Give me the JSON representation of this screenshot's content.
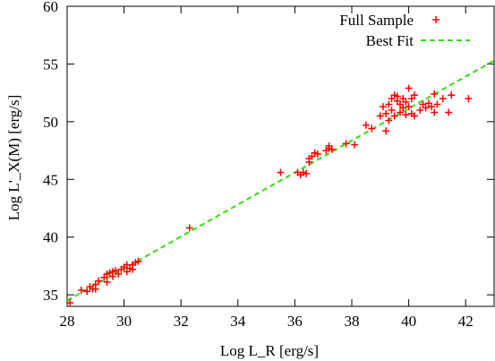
{
  "chart_data": {
    "type": "scatter",
    "title": "",
    "xlabel": "Log L_R [erg/s]",
    "ylabel": "Log L'_X(M) [erg/s]",
    "xlim": [
      28,
      43
    ],
    "ylim": [
      34,
      60
    ],
    "xticks": [
      28,
      30,
      32,
      34,
      36,
      38,
      40,
      42
    ],
    "yticks": [
      35,
      40,
      45,
      50,
      55,
      60
    ],
    "grid": false,
    "legend_position": "top-right",
    "colors": {
      "points": "#ff0000",
      "fit": "#33dd11"
    },
    "series": [
      {
        "name": "Full Sample",
        "kind": "points",
        "marker": "plus",
        "points": [
          [
            28.1,
            34.3
          ],
          [
            28.5,
            35.4
          ],
          [
            28.7,
            35.3
          ],
          [
            28.8,
            35.7
          ],
          [
            28.9,
            35.5
          ],
          [
            29.0,
            35.5
          ],
          [
            29.0,
            35.9
          ],
          [
            29.1,
            36.2
          ],
          [
            29.3,
            36.5
          ],
          [
            29.4,
            36.8
          ],
          [
            29.4,
            36.1
          ],
          [
            29.5,
            36.9
          ],
          [
            29.6,
            36.6
          ],
          [
            29.6,
            37.0
          ],
          [
            29.7,
            37.1
          ],
          [
            29.8,
            36.8
          ],
          [
            29.9,
            37.2
          ],
          [
            30.0,
            37.4
          ],
          [
            30.1,
            37.0
          ],
          [
            30.1,
            37.6
          ],
          [
            30.2,
            37.3
          ],
          [
            30.3,
            37.6
          ],
          [
            30.3,
            37.2
          ],
          [
            30.4,
            37.8
          ],
          [
            30.5,
            37.9
          ],
          [
            32.3,
            40.8
          ],
          [
            35.5,
            45.6
          ],
          [
            36.1,
            45.6
          ],
          [
            36.2,
            45.4
          ],
          [
            36.3,
            45.6
          ],
          [
            36.4,
            45.5
          ],
          [
            36.5,
            46.5
          ],
          [
            36.5,
            46.8
          ],
          [
            36.6,
            47.0
          ],
          [
            36.7,
            47.3
          ],
          [
            36.8,
            47.2
          ],
          [
            37.1,
            47.5
          ],
          [
            37.2,
            47.9
          ],
          [
            37.2,
            47.7
          ],
          [
            37.3,
            47.6
          ],
          [
            37.8,
            48.1
          ],
          [
            38.1,
            48.0
          ],
          [
            38.5,
            49.7
          ],
          [
            38.7,
            49.4
          ],
          [
            39.0,
            50.5
          ],
          [
            39.1,
            51.3
          ],
          [
            39.2,
            49.2
          ],
          [
            39.2,
            50.7
          ],
          [
            39.3,
            50.1
          ],
          [
            39.3,
            51.5
          ],
          [
            39.4,
            52.0
          ],
          [
            39.4,
            51.0
          ],
          [
            39.5,
            52.3
          ],
          [
            39.5,
            50.5
          ],
          [
            39.6,
            51.8
          ],
          [
            39.6,
            52.2
          ],
          [
            39.7,
            50.8
          ],
          [
            39.7,
            51.5
          ],
          [
            39.8,
            51.2
          ],
          [
            39.8,
            52.0
          ],
          [
            39.9,
            50.6
          ],
          [
            39.9,
            51.7
          ],
          [
            40.0,
            52.9
          ],
          [
            40.0,
            51.3
          ],
          [
            40.1,
            52.0
          ],
          [
            40.1,
            50.7
          ],
          [
            40.2,
            52.3
          ],
          [
            40.2,
            50.5
          ],
          [
            40.4,
            51.0
          ],
          [
            40.5,
            51.5
          ],
          [
            40.6,
            51.2
          ],
          [
            40.7,
            51.6
          ],
          [
            40.8,
            51.3
          ],
          [
            40.9,
            52.4
          ],
          [
            40.9,
            50.8
          ],
          [
            41.0,
            51.5
          ],
          [
            41.2,
            52.0
          ],
          [
            41.4,
            50.8
          ],
          [
            41.5,
            52.3
          ],
          [
            42.1,
            52.0
          ]
        ]
      },
      {
        "name": "Best Fit",
        "kind": "line",
        "style": "dashed",
        "x": [
          28,
          43
        ],
        "y": [
          34.5,
          55.3
        ]
      }
    ]
  }
}
